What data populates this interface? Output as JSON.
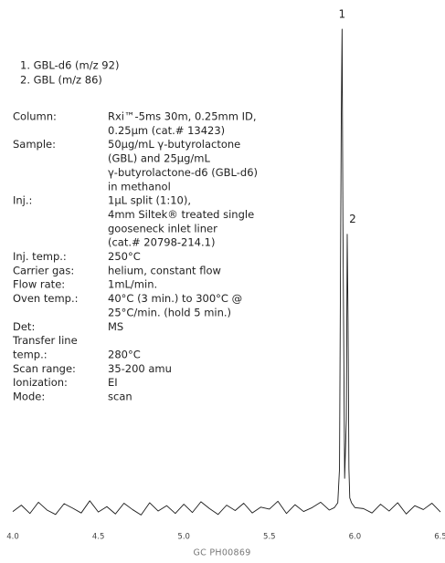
{
  "legend": [
    "1. GBL-d6 (m/z 92)",
    "2. GBL (m/z 86)"
  ],
  "conditions": [
    {
      "label": [
        "Column:"
      ],
      "value": [
        "Rxi™-5ms 30m, 0.25mm ID,",
        "0.25µm (cat.# 13423)"
      ]
    },
    {
      "label": [
        "Sample:"
      ],
      "value": [
        "50µg/mL γ-butyrolactone",
        "(GBL) and 25µg/mL",
        "γ-butyrolactone-d6 (GBL-d6)",
        "in methanol"
      ]
    },
    {
      "label": [
        "Inj.:"
      ],
      "value": [
        "1µL split (1:10),",
        "4mm Siltek® treated single",
        "gooseneck inlet liner",
        "(cat.# 20798-214.1)"
      ]
    },
    {
      "label": [
        "Inj. temp.:"
      ],
      "value": [
        "250°C"
      ]
    },
    {
      "label": [
        "Carrier gas:"
      ],
      "value": [
        "helium, constant flow"
      ]
    },
    {
      "label": [
        "Flow rate:"
      ],
      "value": [
        "1mL/min."
      ]
    },
    {
      "label": [
        "Oven temp.:"
      ],
      "value": [
        "40°C (3 min.) to 300°C @",
        "25°C/min. (hold 5 min.)"
      ]
    },
    {
      "label": [
        "Det:"
      ],
      "value": [
        "MS"
      ]
    },
    {
      "label": [
        "Transfer line",
        " temp.:"
      ],
      "value": [
        "280°C"
      ]
    },
    {
      "label": [
        "Scan range:"
      ],
      "value": [
        "35-200 amu"
      ]
    },
    {
      "label": [
        "Ionization:"
      ],
      "value": [
        "EI"
      ]
    },
    {
      "label": [
        "Mode:"
      ],
      "value": [
        "scan"
      ]
    }
  ],
  "chart_data": {
    "type": "line",
    "x": [
      4.0,
      4.05,
      4.1,
      4.15,
      4.2,
      4.25,
      4.3,
      4.35,
      4.4,
      4.45,
      4.5,
      4.55,
      4.6,
      4.65,
      4.7,
      4.75,
      4.8,
      4.85,
      4.9,
      4.95,
      5.0,
      5.05,
      5.1,
      5.15,
      5.2,
      5.25,
      5.3,
      5.35,
      5.4,
      5.45,
      5.5,
      5.55,
      5.6,
      5.65,
      5.7,
      5.75,
      5.8,
      5.85,
      5.88,
      5.9,
      5.91,
      5.92,
      5.925,
      5.93,
      5.94,
      5.95,
      5.955,
      5.96,
      5.965,
      5.97,
      5.98,
      6.0,
      6.05,
      6.1,
      6.15,
      6.2,
      6.25,
      6.3,
      6.35,
      6.4,
      6.45,
      6.5
    ],
    "values": [
      1.2,
      2.5,
      0.8,
      3.1,
      1.5,
      0.6,
      2.8,
      1.9,
      0.9,
      3.4,
      1.1,
      2.2,
      0.7,
      2.9,
      1.6,
      0.5,
      3.0,
      1.3,
      2.4,
      0.8,
      2.7,
      1.0,
      3.2,
      1.8,
      0.6,
      2.5,
      1.4,
      2.9,
      0.9,
      2.1,
      1.7,
      3.3,
      0.8,
      2.6,
      1.2,
      2.0,
      3.1,
      1.5,
      2,
      3,
      10,
      80,
      100,
      60,
      8,
      20,
      58,
      40,
      10,
      4,
      3,
      2,
      1.8,
      0.9,
      2.7,
      1.3,
      3.0,
      0.7,
      2.4,
      1.6,
      2.9,
      1.1
    ],
    "color": "#1a1a1a",
    "xlim": [
      4.0,
      6.5
    ],
    "ylim": [
      0,
      100
    ],
    "xticks": [
      {
        "value": 4,
        "label": "4.0"
      },
      4.5,
      {
        "value": 5,
        "label": "5.0"
      },
      5.5,
      {
        "value": 6,
        "label": "6.0"
      },
      6.5
    ],
    "annotations": [
      {
        "text": "1",
        "x": 5.925,
        "y": 100
      },
      {
        "text": "2",
        "x": 5.955,
        "y": 58
      }
    ]
  },
  "footer": "GC PH00869"
}
